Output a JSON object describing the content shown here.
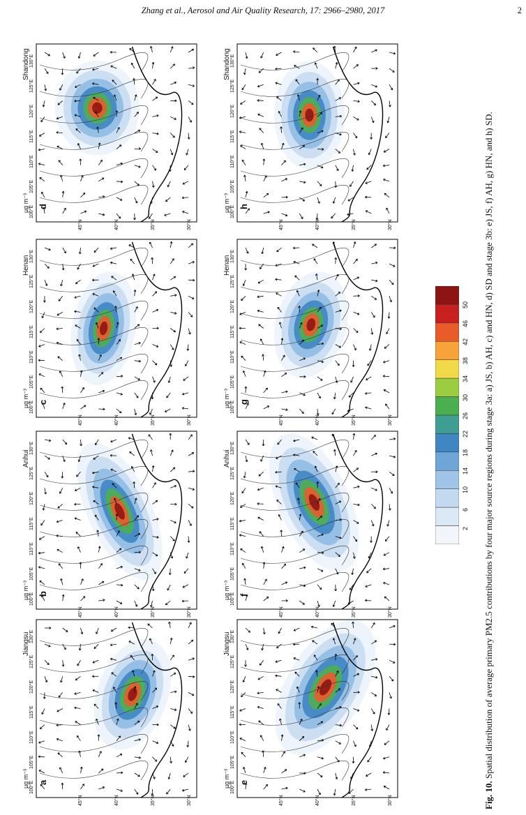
{
  "header": {
    "running_head": "Zhang et al., Aerosol and Air Quality Research, 17: 2966–2980, 2017",
    "page_number": "2"
  },
  "caption": {
    "label": "Fig. 10.",
    "text": " Spatial distribution of average primary PM2.5 contributions by four major source regions during stage 3a: a) JS, b) AH, c) and HN, d) SD and stage 3b: e) JS, f) AH, g) HN, and h) SD."
  },
  "unit": "µg m⁻³",
  "lon_ticks": [
    "100°E",
    "105°E",
    "110°E",
    "115°E",
    "120°E",
    "125°E",
    "130°E"
  ],
  "lat_ticks": [
    "45°N",
    "40°N",
    "35°N",
    "30°N"
  ],
  "panels": [
    {
      "letter": "a",
      "region": "Jiangsu"
    },
    {
      "letter": "b",
      "region": "Anhui"
    },
    {
      "letter": "c",
      "region": "Henan"
    },
    {
      "letter": "d",
      "region": "Shandong"
    },
    {
      "letter": "e",
      "region": "Jiangsu"
    },
    {
      "letter": "f",
      "region": "Anhui"
    },
    {
      "letter": "g",
      "region": "Henan"
    },
    {
      "letter": "h",
      "region": "Shandong"
    }
  ],
  "colorbar": {
    "labels": [
      "2",
      "6",
      "10",
      "14",
      "18",
      "22",
      "26",
      "30",
      "34",
      "38",
      "42",
      "46",
      "50"
    ],
    "colors": [
      "#f2f6fb",
      "#dbe8f6",
      "#c2d9f0",
      "#9fc4e8",
      "#6fa6d8",
      "#3f86c3",
      "#3f9e93",
      "#4caf4f",
      "#9acd3f",
      "#f2d94a",
      "#f8a23a",
      "#ea5b2a",
      "#c8201f",
      "#8e1414"
    ]
  }
}
